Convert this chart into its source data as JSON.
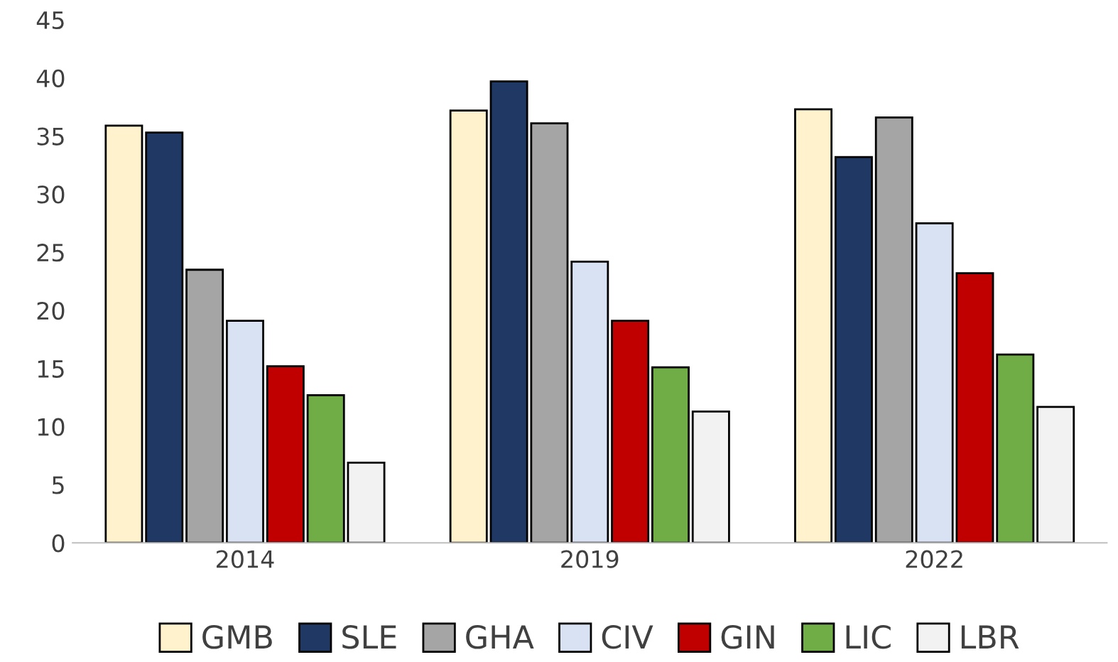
{
  "chart_data": {
    "type": "bar",
    "categories": [
      "2014",
      "2019",
      "2022"
    ],
    "series": [
      {
        "name": "GMB",
        "color": "#fff2cc",
        "values": [
          35.9,
          37.2,
          37.3
        ]
      },
      {
        "name": "SLE",
        "color": "#1f3864",
        "values": [
          35.3,
          39.7,
          33.2
        ]
      },
      {
        "name": "GHA",
        "color": "#a5a5a5",
        "values": [
          23.5,
          36.1,
          36.6
        ]
      },
      {
        "name": "CIV",
        "color": "#d9e2f3",
        "values": [
          19.1,
          24.2,
          27.5
        ]
      },
      {
        "name": "GIN",
        "color": "#c00000",
        "values": [
          15.2,
          19.1,
          23.2
        ]
      },
      {
        "name": "LIC",
        "color": "#70ad47",
        "values": [
          12.7,
          15.1,
          16.2
        ]
      },
      {
        "name": "LBR",
        "color": "#f2f2f2",
        "values": [
          6.9,
          11.3,
          11.7
        ]
      }
    ],
    "ylim": [
      0,
      45
    ],
    "yticks": [
      0,
      5,
      10,
      15,
      20,
      25,
      30,
      35,
      40,
      45
    ],
    "grid": false,
    "legend": "bottom"
  }
}
